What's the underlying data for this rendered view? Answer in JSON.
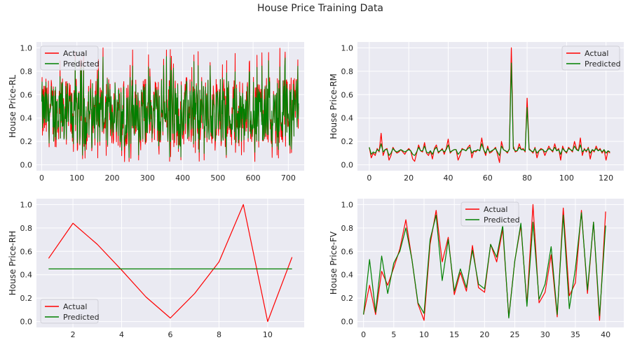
{
  "figure": {
    "title": "House Price Training Data"
  },
  "colors": {
    "actual": "#ff0000",
    "predicted": "#008000",
    "plot_bg": "#eaeaf2",
    "grid": "#ffffff"
  },
  "chart_data": [
    {
      "type": "line",
      "title": "",
      "xlabel": "",
      "ylabel": "House Price-RL",
      "xlim": [
        -15,
        745
      ],
      "ylim": [
        -0.05,
        1.05
      ],
      "xticks": [
        0,
        100,
        200,
        300,
        400,
        500,
        600,
        700
      ],
      "yticks": [
        0.0,
        0.2,
        0.4,
        0.6,
        0.8,
        1.0
      ],
      "legend_position": "upper left",
      "noise_series": true,
      "n_points": 730,
      "series": [
        {
          "name": "Actual",
          "color": "#ff0000"
        },
        {
          "name": "Predicted",
          "color": "#008000"
        }
      ],
      "note_values": "dense noisy series of 730 points ranging 0.0-1.0, mostly 0.15-0.8"
    },
    {
      "type": "line",
      "title": "",
      "xlabel": "",
      "ylabel": "House Price-RM",
      "xlim": [
        -6,
        129
      ],
      "ylim": [
        -0.05,
        1.05
      ],
      "xticks": [
        0,
        20,
        40,
        60,
        80,
        100,
        120
      ],
      "yticks": [
        0.0,
        0.2,
        0.4,
        0.6,
        0.8,
        1.0
      ],
      "legend_position": "upper right",
      "series": [
        {
          "name": "Actual",
          "color": "#ff0000",
          "values": [
            0.15,
            0.06,
            0.1,
            0.08,
            0.14,
            0.11,
            0.27,
            0.08,
            0.13,
            0.14,
            0.04,
            0.08,
            0.15,
            0.12,
            0.1,
            0.11,
            0.13,
            0.11,
            0.09,
            0.12,
            0.14,
            0.12,
            0.05,
            0.03,
            0.1,
            0.17,
            0.12,
            0.11,
            0.19,
            0.1,
            0.08,
            0.12,
            0.05,
            0.14,
            0.17,
            0.1,
            0.12,
            0.14,
            0.09,
            0.14,
            0.22,
            0.1,
            0.12,
            0.13,
            0.13,
            0.04,
            0.08,
            0.14,
            0.13,
            0.12,
            0.15,
            0.17,
            0.06,
            0.12,
            0.11,
            0.13,
            0.12,
            0.23,
            0.13,
            0.08,
            0.16,
            0.1,
            0.11,
            0.13,
            0.15,
            0.09,
            0.02,
            0.2,
            0.13,
            0.12,
            0.1,
            0.14,
            1.0,
            0.16,
            0.11,
            0.12,
            0.18,
            0.13,
            0.14,
            0.11,
            0.57,
            0.14,
            0.12,
            0.1,
            0.15,
            0.06,
            0.12,
            0.14,
            0.13,
            0.08,
            0.12,
            0.16,
            0.13,
            0.11,
            0.18,
            0.12,
            0.14,
            0.04,
            0.16,
            0.12,
            0.1,
            0.15,
            0.13,
            0.11,
            0.2,
            0.14,
            0.12,
            0.23,
            0.08,
            0.14,
            0.11,
            0.15,
            0.05,
            0.13,
            0.11,
            0.16,
            0.12,
            0.14,
            0.1,
            0.13,
            0.04,
            0.12,
            0.1
          ]
        },
        {
          "name": "Predicted",
          "color": "#008000",
          "values": [
            0.15,
            0.09,
            0.11,
            0.1,
            0.13,
            0.12,
            0.18,
            0.11,
            0.13,
            0.13,
            0.08,
            0.1,
            0.14,
            0.12,
            0.11,
            0.12,
            0.13,
            0.12,
            0.11,
            0.12,
            0.13,
            0.12,
            0.09,
            0.08,
            0.11,
            0.15,
            0.12,
            0.12,
            0.16,
            0.11,
            0.1,
            0.12,
            0.09,
            0.13,
            0.15,
            0.11,
            0.12,
            0.13,
            0.11,
            0.13,
            0.17,
            0.11,
            0.12,
            0.13,
            0.13,
            0.09,
            0.11,
            0.13,
            0.13,
            0.12,
            0.14,
            0.15,
            0.1,
            0.12,
            0.12,
            0.13,
            0.12,
            0.18,
            0.13,
            0.1,
            0.14,
            0.11,
            0.12,
            0.13,
            0.14,
            0.11,
            0.08,
            0.16,
            0.13,
            0.12,
            0.11,
            0.13,
            0.87,
            0.14,
            0.12,
            0.12,
            0.15,
            0.13,
            0.13,
            0.12,
            0.49,
            0.13,
            0.12,
            0.11,
            0.14,
            0.1,
            0.12,
            0.13,
            0.13,
            0.11,
            0.12,
            0.14,
            0.13,
            0.12,
            0.15,
            0.12,
            0.13,
            0.09,
            0.14,
            0.12,
            0.11,
            0.14,
            0.13,
            0.12,
            0.16,
            0.13,
            0.12,
            0.17,
            0.11,
            0.13,
            0.12,
            0.14,
            0.1,
            0.13,
            0.12,
            0.14,
            0.12,
            0.13,
            0.11,
            0.13,
            0.1,
            0.12,
            0.11
          ]
        }
      ]
    },
    {
      "type": "line",
      "title": "",
      "xlabel": "",
      "ylabel": "House Price-RH",
      "xlim": [
        0.5,
        11.5
      ],
      "ylim": [
        -0.05,
        1.05
      ],
      "xticks": [
        2,
        4,
        6,
        8,
        10
      ],
      "yticks": [
        0.0,
        0.2,
        0.4,
        0.6,
        0.8,
        1.0
      ],
      "legend_position": "lower left",
      "x": [
        1,
        2,
        3,
        4,
        5,
        6,
        7,
        8,
        9,
        10,
        11
      ],
      "series": [
        {
          "name": "Actual",
          "color": "#ff0000",
          "values": [
            0.54,
            0.84,
            0.66,
            0.44,
            0.21,
            0.03,
            0.24,
            0.51,
            1.0,
            0.0,
            0.55
          ]
        },
        {
          "name": "Predicted",
          "color": "#008000",
          "values": [
            0.45,
            0.45,
            0.45,
            0.45,
            0.45,
            0.45,
            0.45,
            0.45,
            0.45,
            0.45,
            0.45
          ]
        }
      ]
    },
    {
      "type": "line",
      "title": "",
      "xlabel": "",
      "ylabel": "House Price-FV",
      "xlim": [
        -1,
        43
      ],
      "ylim": [
        -0.05,
        1.05
      ],
      "xticks": [
        0,
        5,
        10,
        15,
        20,
        25,
        30,
        35,
        40
      ],
      "yticks": [
        0.0,
        0.2,
        0.4,
        0.6,
        0.8,
        1.0
      ],
      "legend_position": "upper center",
      "series": [
        {
          "name": "Actual",
          "color": "#ff0000",
          "values": [
            0.06,
            0.31,
            0.06,
            0.43,
            0.31,
            0.46,
            0.62,
            0.87,
            0.53,
            0.15,
            0.01,
            0.66,
            0.95,
            0.51,
            0.72,
            0.23,
            0.42,
            0.26,
            0.65,
            0.29,
            0.25,
            0.66,
            0.51,
            0.79,
            0.04,
            0.52,
            0.82,
            0.15,
            1.0,
            0.16,
            0.25,
            0.57,
            0.04,
            0.97,
            0.22,
            0.33,
            0.95,
            0.24,
            0.85,
            0.01,
            0.94
          ]
        },
        {
          "name": "Predicted",
          "color": "#008000",
          "values": [
            0.06,
            0.53,
            0.08,
            0.56,
            0.24,
            0.5,
            0.6,
            0.8,
            0.53,
            0.16,
            0.07,
            0.7,
            0.91,
            0.35,
            0.7,
            0.26,
            0.45,
            0.29,
            0.61,
            0.32,
            0.28,
            0.66,
            0.55,
            0.82,
            0.03,
            0.52,
            0.84,
            0.13,
            0.85,
            0.19,
            0.32,
            0.64,
            0.06,
            0.91,
            0.11,
            0.45,
            0.93,
            0.27,
            0.85,
            0.05,
            0.82
          ]
        }
      ]
    }
  ]
}
